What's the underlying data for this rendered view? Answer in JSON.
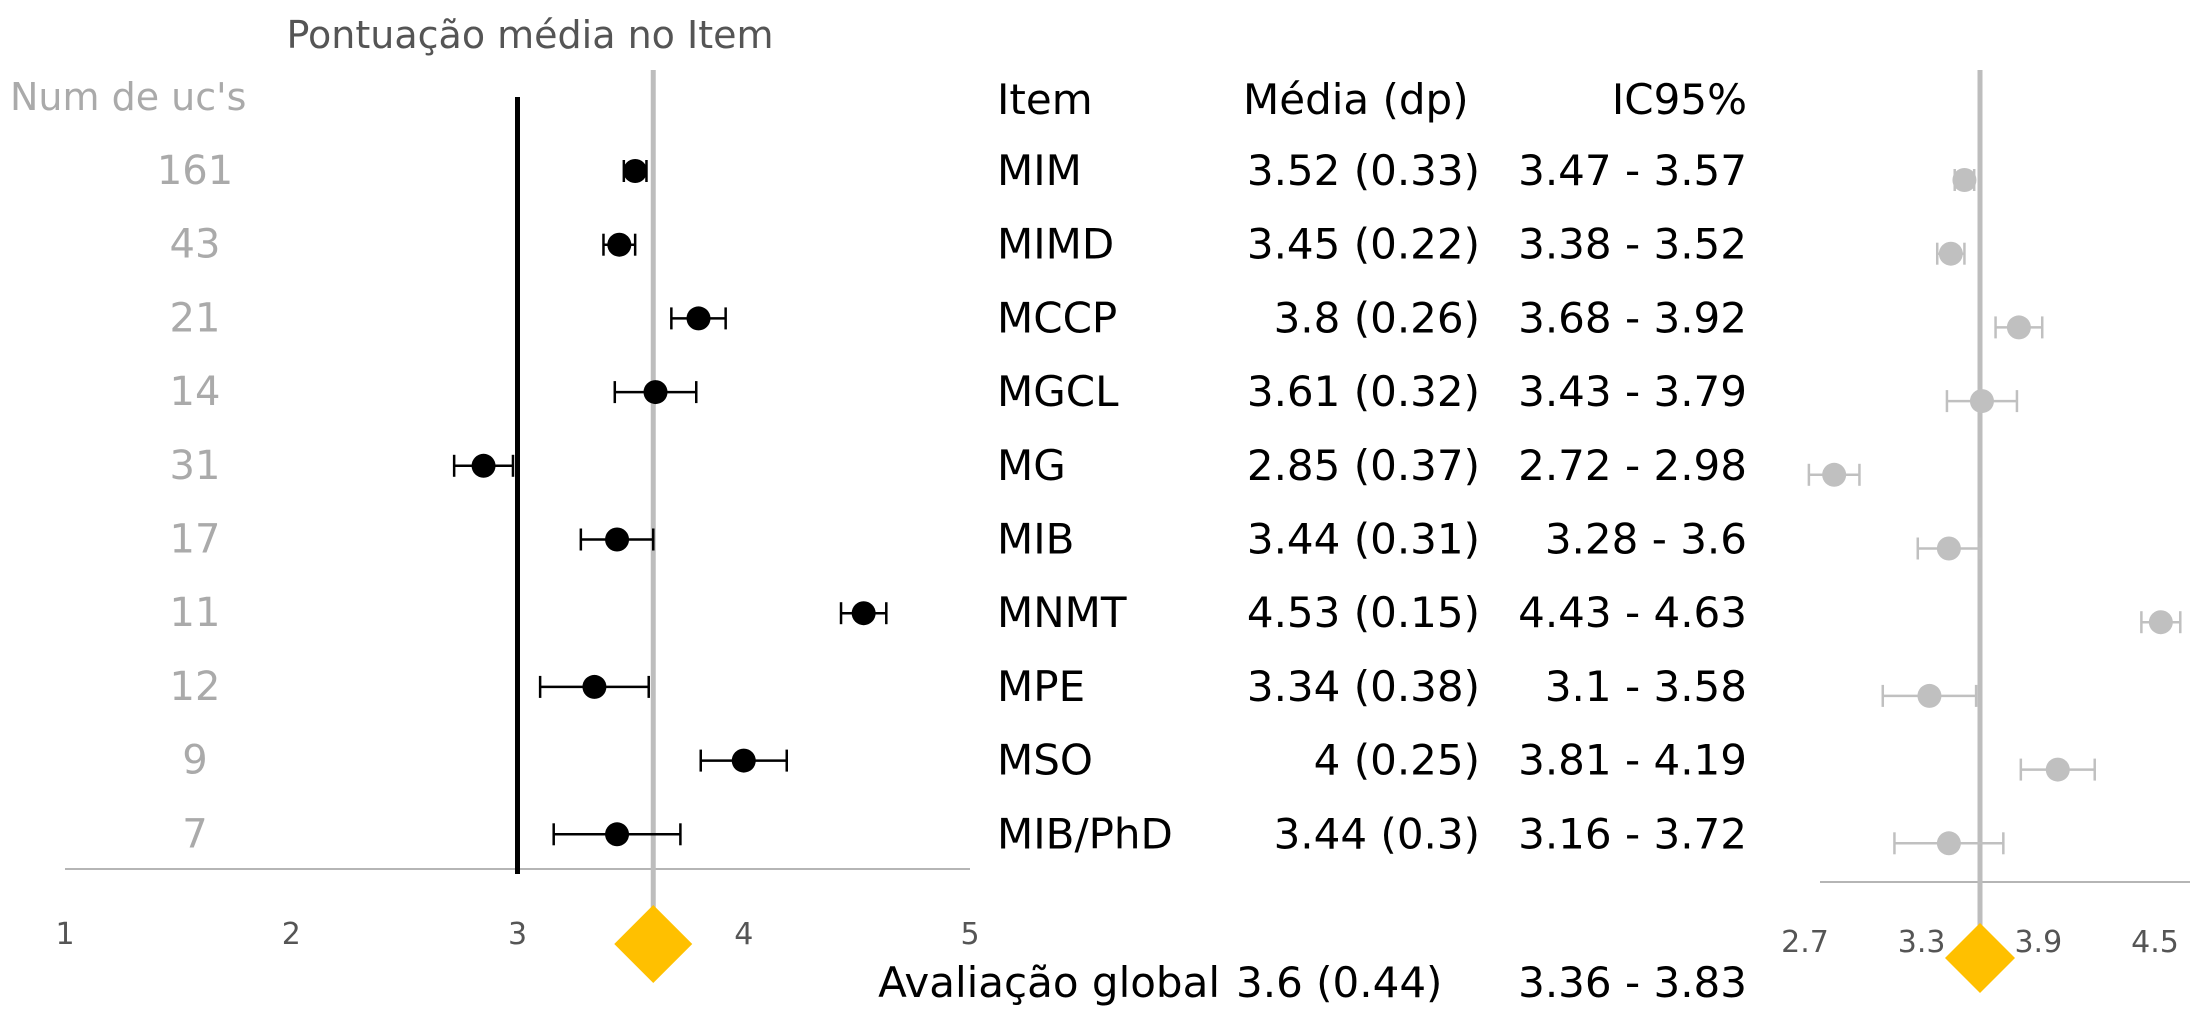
{
  "chart_data": [
    {
      "type": "scatter",
      "title": "Pontuação média no Item",
      "n_header": "Num de uc's",
      "xlim": [
        1,
        5
      ],
      "xticks": [
        1,
        2,
        3,
        4,
        5
      ],
      "reference_line": 3,
      "overall_line": 3.6,
      "marker_color": "#000000",
      "overall_marker_color": "#FFC000",
      "rows": [
        {
          "n": "161",
          "mean": 3.52,
          "lo": 3.47,
          "hi": 3.57
        },
        {
          "n": "43",
          "mean": 3.45,
          "lo": 3.38,
          "hi": 3.52
        },
        {
          "n": "21",
          "mean": 3.8,
          "lo": 3.68,
          "hi": 3.92
        },
        {
          "n": "14",
          "mean": 3.61,
          "lo": 3.43,
          "hi": 3.79
        },
        {
          "n": "31",
          "mean": 2.85,
          "lo": 2.72,
          "hi": 2.98
        },
        {
          "n": "17",
          "mean": 3.44,
          "lo": 3.28,
          "hi": 3.6
        },
        {
          "n": "11",
          "mean": 4.53,
          "lo": 4.43,
          "hi": 4.63
        },
        {
          "n": "12",
          "mean": 3.34,
          "lo": 3.1,
          "hi": 3.58
        },
        {
          "n": "9",
          "mean": 4.0,
          "lo": 3.81,
          "hi": 4.19
        },
        {
          "n": "7",
          "mean": 3.44,
          "lo": 3.16,
          "hi": 3.72
        }
      ]
    },
    {
      "type": "table",
      "columns": [
        "Item",
        "Média (dp)",
        "IC95%"
      ],
      "rows": [
        {
          "item": "MIM",
          "mean_sd": "3.52 (0.33)",
          "ci": "3.47 - 3.57"
        },
        {
          "item": "MIMD",
          "mean_sd": "3.45 (0.22)",
          "ci": "3.38 - 3.52"
        },
        {
          "item": "MCCP",
          "mean_sd": "3.8 (0.26)",
          "ci": "3.68 - 3.92"
        },
        {
          "item": "MGCL",
          "mean_sd": "3.61 (0.32)",
          "ci": "3.43 - 3.79"
        },
        {
          "item": "MG",
          "mean_sd": "2.85 (0.37)",
          "ci": "2.72 - 2.98"
        },
        {
          "item": "MIB",
          "mean_sd": "3.44 (0.31)",
          "ci": "3.28 - 3.6"
        },
        {
          "item": "MNMT",
          "mean_sd": "4.53 (0.15)",
          "ci": "4.43 - 4.63"
        },
        {
          "item": "MPE",
          "mean_sd": "3.34 (0.38)",
          "ci": "3.1 - 3.58"
        },
        {
          "item": "MSO",
          "mean_sd": "4 (0.25)",
          "ci": "3.81 - 4.19"
        },
        {
          "item": "MIB/PhD",
          "mean_sd": "3.44 (0.3)",
          "ci": "3.16 - 3.72"
        }
      ],
      "overall": {
        "label": "Avaliação global",
        "mean_sd": "3.6 (0.44)",
        "ci": "3.36 - 3.83"
      }
    },
    {
      "type": "scatter",
      "xlim": [
        2.7,
        4.5
      ],
      "xticks": [
        "2.7",
        "3.3",
        "3.9",
        "4.5"
      ],
      "overall_line": 3.6,
      "marker_color": "#C0C0C0",
      "overall_marker_color": "#FFC000",
      "rows": [
        {
          "mean": 3.52,
          "lo": 3.47,
          "hi": 3.57
        },
        {
          "mean": 3.45,
          "lo": 3.38,
          "hi": 3.52
        },
        {
          "mean": 3.8,
          "lo": 3.68,
          "hi": 3.92
        },
        {
          "mean": 3.61,
          "lo": 3.43,
          "hi": 3.79
        },
        {
          "mean": 2.85,
          "lo": 2.72,
          "hi": 2.98
        },
        {
          "mean": 3.44,
          "lo": 3.28,
          "hi": 3.6
        },
        {
          "mean": 4.53,
          "lo": 4.43,
          "hi": 4.63
        },
        {
          "mean": 3.34,
          "lo": 3.1,
          "hi": 3.58
        },
        {
          "mean": 4.0,
          "lo": 3.81,
          "hi": 4.19
        },
        {
          "mean": 3.44,
          "lo": 3.16,
          "hi": 3.72
        }
      ]
    }
  ]
}
